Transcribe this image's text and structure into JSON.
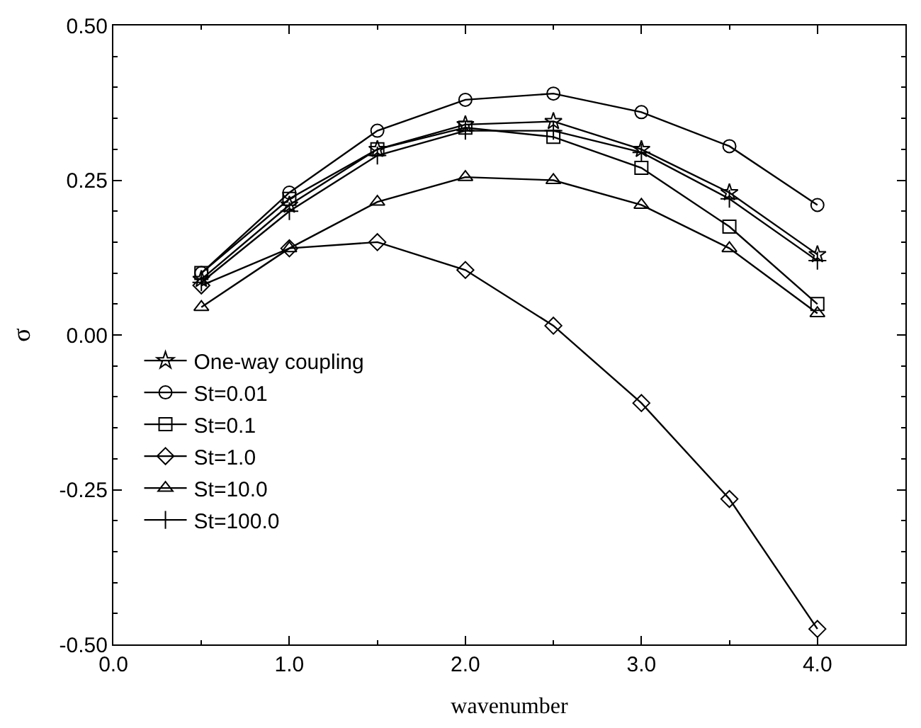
{
  "chart_data": {
    "type": "line",
    "xlabel": "wavenumber",
    "ylabel": "σ",
    "x": [
      0.5,
      1.0,
      1.5,
      2.0,
      2.5,
      3.0,
      3.5,
      4.0
    ],
    "xlim": [
      0,
      4.5
    ],
    "ylim": [
      -0.5,
      0.5
    ],
    "xticks": [
      {
        "value": 0,
        "label": "0.0"
      },
      {
        "value": 1,
        "label": "1.0"
      },
      {
        "value": 2,
        "label": "2.0"
      },
      {
        "value": 3,
        "label": "3.0"
      },
      {
        "value": 4,
        "label": "4.0"
      }
    ],
    "yticks": [
      {
        "value": -0.5,
        "label": "-0.50"
      },
      {
        "value": -0.25,
        "label": "-0.25"
      },
      {
        "value": 0,
        "label": "0.00"
      },
      {
        "value": 0.25,
        "label": "0.25"
      },
      {
        "value": 0.5,
        "label": "0.50"
      }
    ],
    "legend": "center left",
    "line_style": "solid",
    "series": [
      {
        "name": "One-way coupling",
        "color": "#000000",
        "marker": "star",
        "values": [
          0.09,
          0.21,
          0.3,
          0.34,
          0.345,
          0.3,
          0.23,
          0.13
        ]
      },
      {
        "name": "St=0.01",
        "color": "#000000",
        "marker": "circle",
        "values": [
          0.1,
          0.23,
          0.33,
          0.38,
          0.39,
          0.36,
          0.305,
          0.21
        ]
      },
      {
        "name": "St=0.1",
        "color": "#000000",
        "marker": "square",
        "values": [
          0.1,
          0.22,
          0.3,
          0.335,
          0.32,
          0.27,
          0.175,
          0.05
        ]
      },
      {
        "name": "St=1.0",
        "color": "#000000",
        "marker": "diamond",
        "values": [
          0.08,
          0.14,
          0.15,
          0.105,
          0.015,
          -0.11,
          -0.265,
          -0.475
        ]
      },
      {
        "name": "St=10.0",
        "color": "#000000",
        "marker": "triangle",
        "values": [
          0.045,
          0.14,
          0.215,
          0.255,
          0.25,
          0.21,
          0.14,
          0.035
        ]
      },
      {
        "name": "St=100.0",
        "color": "#000000",
        "marker": "cross",
        "values": [
          0.085,
          0.2,
          0.29,
          0.33,
          0.33,
          0.295,
          0.22,
          0.12
        ]
      }
    ]
  }
}
